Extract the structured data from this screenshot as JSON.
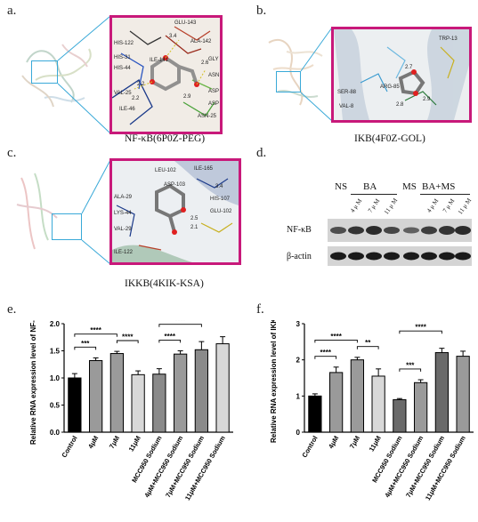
{
  "panels": {
    "a": {
      "label": "a.",
      "caption": "NF-κB(6P0Z-PEG)",
      "residues": [
        "HIS-122",
        "GLU-143",
        "ILE-141",
        "ALA-142",
        "GLY",
        "ASN",
        "ASP",
        "ASP",
        "ASN-25",
        "VAL-25",
        "ILE-46",
        "HIS-31",
        "HIS-44"
      ],
      "distances": [
        "3.4",
        "2.6",
        "2.2",
        "2.2",
        "2.9"
      ]
    },
    "b": {
      "label": "b.",
      "caption": "IKB(4F0Z-GOL)",
      "residues": [
        "ARG-85",
        "TRP-13",
        "SER-88",
        "VAL-8"
      ],
      "distances": [
        "2.7",
        "2.9",
        "2.8"
      ]
    },
    "c": {
      "label": "c.",
      "caption": "IKKB(4KIK-KSA)",
      "residues": [
        "LEU-102",
        "ILE-165",
        "ASP-103",
        "ALA-29",
        "LYS-44",
        "VAL-29",
        "ILE-122",
        "HIS-107",
        "GLU-102"
      ],
      "distances": [
        "2.5",
        "2.1",
        "3.4"
      ]
    },
    "d": {
      "label": "d.",
      "groups": [
        "NS",
        "BA",
        "MS",
        "BA+MS"
      ],
      "lane_labels": [
        "4 μ M",
        "7 μ M",
        "11 μ M",
        "4 μ M",
        "7 μ M",
        "11 μ M"
      ],
      "rows": [
        "NF-κB",
        "β-actin"
      ]
    },
    "e": {
      "label": "e."
    },
    "f": {
      "label": "f."
    }
  },
  "chart_data": [
    {
      "type": "bar",
      "ylabel": "Relative RNA expression level of NF-κB",
      "categories": [
        "Control",
        "4μM",
        "7μM",
        "11μM",
        "MCC950 Sodium",
        "4μM+MCC950 Sodium",
        "7μM+MCC950 Sodium",
        "11μM+MCC950 Sodium"
      ],
      "values": [
        1.0,
        1.32,
        1.45,
        1.06,
        1.07,
        1.44,
        1.52,
        1.63
      ],
      "errors": [
        0.08,
        0.05,
        0.04,
        0.07,
        0.1,
        0.06,
        0.15,
        0.13
      ],
      "colors": [
        "#000000",
        "#9a9a9a",
        "#9a9a9a",
        "#d8d8d8",
        "#8a8a8a",
        "#9a9a9a",
        "#8a8a8a",
        "#d8d8d8"
      ],
      "ylim": [
        0,
        2.0
      ],
      "yticks": [
        "0.0",
        "0.5",
        "1.0",
        "1.5",
        "2.0"
      ],
      "significance": [
        {
          "from": 0,
          "to": 1,
          "label": "***"
        },
        {
          "from": 0,
          "to": 2,
          "label": "****"
        },
        {
          "from": 2,
          "to": 3,
          "label": "****"
        },
        {
          "from": 4,
          "to": 5,
          "label": "****"
        },
        {
          "from": 4,
          "to": 6,
          "label": "****"
        }
      ]
    },
    {
      "type": "bar",
      "ylabel": "Relative RNA expression level of IKKB",
      "categories": [
        "Control",
        "4μM",
        "7μM",
        "11μM",
        "MCC950 Sodium",
        "4μM+MCC950 Sodium",
        "7μM+MCC950 Sodium",
        "11μM+MCC950 Sodium"
      ],
      "values": [
        1.0,
        1.65,
        2.0,
        1.55,
        0.9,
        1.37,
        2.2,
        2.1
      ],
      "errors": [
        0.06,
        0.15,
        0.07,
        0.2,
        0.03,
        0.08,
        0.12,
        0.14
      ],
      "colors": [
        "#000000",
        "#9a9a9a",
        "#9a9a9a",
        "#d8d8d8",
        "#6a6a6a",
        "#9a9a9a",
        "#6a6a6a",
        "#9a9a9a"
      ],
      "ylim": [
        0,
        3
      ],
      "yticks": [
        "0",
        "1",
        "2",
        "3"
      ],
      "significance": [
        {
          "from": 0,
          "to": 1,
          "label": "****"
        },
        {
          "from": 0,
          "to": 2,
          "label": "****"
        },
        {
          "from": 2,
          "to": 3,
          "label": "**"
        },
        {
          "from": 4,
          "to": 5,
          "label": "***"
        },
        {
          "from": 4,
          "to": 6,
          "label": "****"
        }
      ]
    }
  ]
}
